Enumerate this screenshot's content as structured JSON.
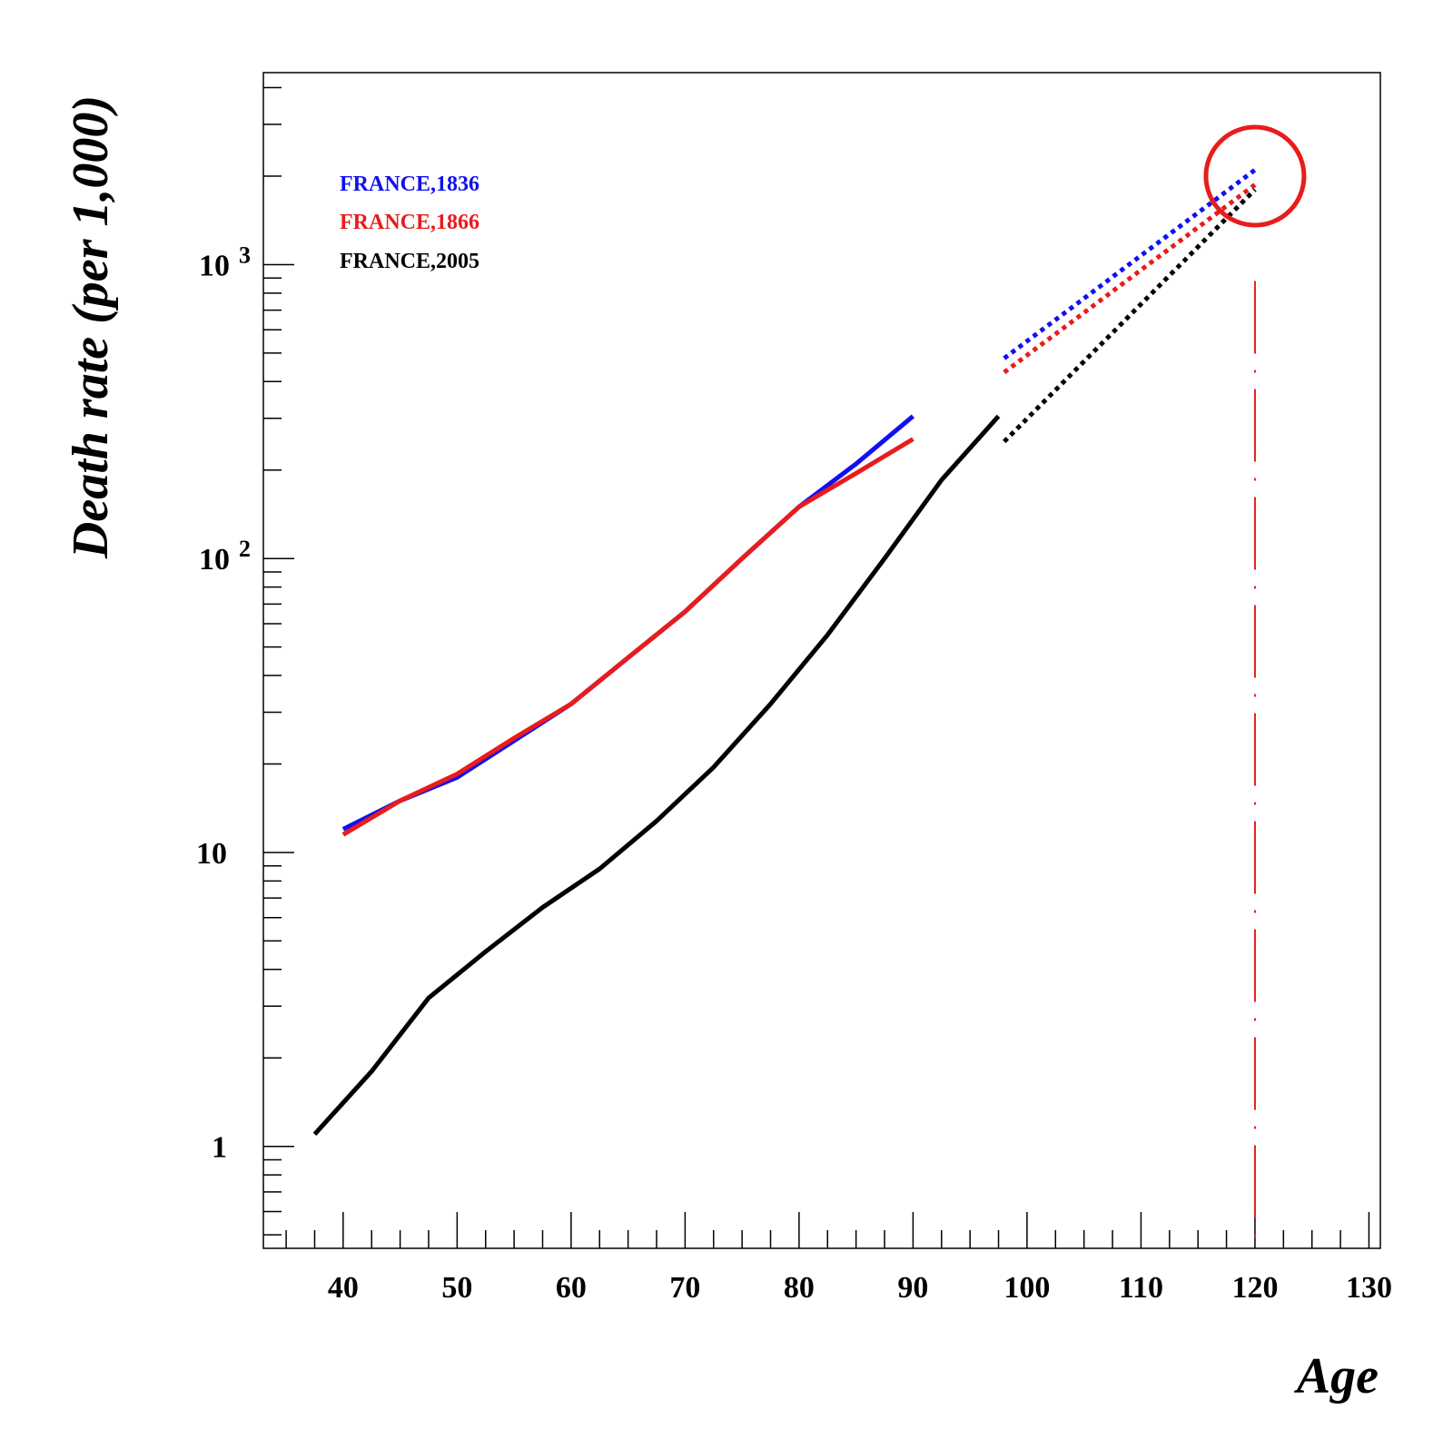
{
  "chart_data": {
    "type": "line",
    "title": "",
    "xlabel": "Age",
    "ylabel": "Death rate (per 1,000)",
    "xlim": [
      33,
      131
    ],
    "ylim": [
      0.45,
      4500
    ],
    "yscale": "log",
    "grid": false,
    "legend_position": "top-left",
    "x_ticks": [
      "40",
      "50",
      "60",
      "70",
      "80",
      "90",
      "100",
      "110",
      "120",
      "130"
    ],
    "y_ticks": [
      {
        "value": 1,
        "base": "1",
        "exp": ""
      },
      {
        "value": 10,
        "base": "10",
        "exp": ""
      },
      {
        "value": 100,
        "base": "10",
        "exp": "2"
      },
      {
        "value": 1000,
        "base": "10",
        "exp": "3"
      }
    ],
    "series": [
      {
        "name": "FRANCE,1836",
        "color": "#1010f0",
        "x": [
          40,
          45,
          50,
          55,
          60,
          65,
          70,
          75,
          80,
          85,
          90
        ],
        "y": [
          12,
          15,
          18,
          24,
          32,
          46,
          66,
          100,
          150,
          210,
          305
        ],
        "extrapolation": {
          "x": [
            98,
            120
          ],
          "y": [
            480,
            2100
          ]
        }
      },
      {
        "name": "FRANCE,1866",
        "color": "#e81c1c",
        "x": [
          40,
          45,
          50,
          55,
          60,
          65,
          70,
          75,
          80,
          85,
          90
        ],
        "y": [
          11.5,
          15,
          18.5,
          24.5,
          32,
          46,
          66,
          100,
          150,
          195,
          255
        ],
        "extrapolation": {
          "x": [
            98,
            120
          ],
          "y": [
            430,
            1870
          ]
        }
      },
      {
        "name": "FRANCE,2005",
        "color": "#000000",
        "x": [
          37.5,
          42.5,
          47.5,
          52.5,
          57.5,
          62.5,
          67.5,
          72.5,
          77.5,
          82.5,
          87.5,
          92.5,
          97.5
        ],
        "y": [
          1.1,
          1.8,
          3.2,
          4.6,
          6.5,
          8.8,
          12.8,
          19.5,
          32,
          55,
          100,
          185,
          305
        ],
        "extrapolation": {
          "x": [
            98,
            120
          ],
          "y": [
            250,
            1800
          ]
        }
      }
    ],
    "annotations": {
      "vertical_marker_x": 120,
      "vertical_marker_color": "#e81c1c",
      "circle_center": {
        "x": 120,
        "y": 2000
      },
      "circle_color": "#e81c1c"
    }
  }
}
